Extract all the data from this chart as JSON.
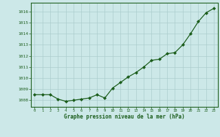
{
  "x": [
    0,
    1,
    2,
    3,
    4,
    5,
    6,
    7,
    8,
    9,
    10,
    11,
    12,
    13,
    14,
    15,
    16,
    17,
    18,
    19,
    20,
    21,
    22,
    23
  ],
  "y": [
    1008.5,
    1008.5,
    1008.5,
    1008.1,
    1007.9,
    1008.0,
    1008.1,
    1008.2,
    1008.5,
    1008.2,
    1009.1,
    1009.6,
    1010.1,
    1010.5,
    1011.0,
    1011.6,
    1011.7,
    1012.2,
    1012.3,
    1013.0,
    1014.0,
    1015.1,
    1015.9,
    1016.3
  ],
  "line_color": "#1a5c1a",
  "marker_color": "#1a5c1a",
  "bg_color": "#cce8e8",
  "grid_color_major": "#aacccc",
  "grid_color_minor": "#ccdddd",
  "xlabel": "Graphe pression niveau de la mer (hPa)",
  "xlabel_color": "#1a5c1a",
  "ylabel_ticks": [
    1008,
    1009,
    1010,
    1011,
    1012,
    1013,
    1014,
    1015,
    1016
  ],
  "ylim": [
    1007.4,
    1016.8
  ],
  "xlim": [
    -0.5,
    23.5
  ],
  "tick_color": "#1a5c1a",
  "spine_color": "#1a5c1a",
  "font_family": "monospace"
}
